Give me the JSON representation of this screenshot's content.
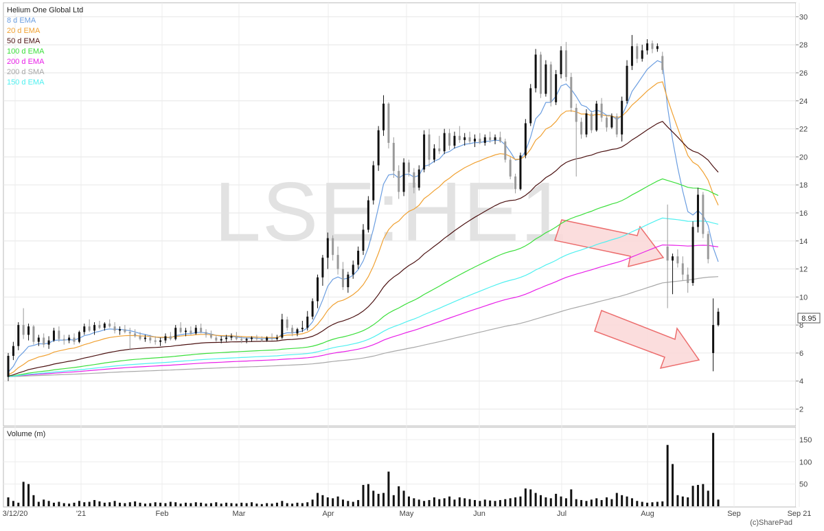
{
  "chart": {
    "title": "Helium One Global Ltd",
    "watermark": "LSE:HE1",
    "credit": "(c)SharePad",
    "last_price_label": "8.95",
    "volume_title": "Volume (m)",
    "legend": [
      {
        "label": "8 d EMA",
        "color": "#6a9de0"
      },
      {
        "label": "20 d EMA",
        "color": "#f0a030"
      },
      {
        "label": "50 d EMA",
        "color": "#4a1010"
      },
      {
        "label": "100 d EMA",
        "color": "#3adf3a"
      },
      {
        "label": "200 d EMA",
        "color": "#e81ee8"
      },
      {
        "label": "200 d SMA",
        "color": "#a8a8a8"
      },
      {
        "label": "150 d EMA",
        "color": "#4ef0f0"
      }
    ],
    "colors": {
      "up_candle": "#111111",
      "down_candle": "#9a9a9a",
      "arrow_fill": "#fbd9d9",
      "arrow_stroke": "#ec6d6d"
    }
  },
  "chart_data": {
    "type": "candlestick",
    "price_axis": {
      "min": 2,
      "max": 30,
      "step": 2,
      "ticks": [
        "2",
        "4",
        "6",
        "8",
        "10",
        "12",
        "14",
        "16",
        "18",
        "20",
        "22",
        "24",
        "26",
        "28",
        "30"
      ]
    },
    "volume_axis": {
      "ticks": [
        "50",
        "100",
        "150"
      ],
      "max": 170
    },
    "x_labels": [
      "3/12/20",
      "'21",
      "Feb",
      "Mar",
      "Apr",
      "May",
      "Jun",
      "Jul",
      "Aug",
      "Sep",
      "Sep 21"
    ],
    "candles": [
      {
        "o": 4.3,
        "h": 6.0,
        "l": 4.0,
        "c": 5.8
      },
      {
        "o": 5.8,
        "h": 6.8,
        "l": 5.5,
        "c": 6.5
      },
      {
        "o": 6.5,
        "h": 8.2,
        "l": 6.2,
        "c": 8.0
      },
      {
        "o": 8.0,
        "h": 9.2,
        "l": 7.0,
        "c": 7.3
      },
      {
        "o": 7.3,
        "h": 8.1,
        "l": 6.9,
        "c": 7.9
      },
      {
        "o": 7.9,
        "h": 8.0,
        "l": 6.6,
        "c": 6.8
      },
      {
        "o": 6.8,
        "h": 7.3,
        "l": 6.5,
        "c": 7.1
      },
      {
        "o": 7.1,
        "h": 7.4,
        "l": 6.4,
        "c": 6.6
      },
      {
        "o": 6.6,
        "h": 7.2,
        "l": 6.3,
        "c": 6.9
      },
      {
        "o": 6.9,
        "h": 7.8,
        "l": 6.8,
        "c": 7.6
      },
      {
        "o": 7.6,
        "h": 7.9,
        "l": 6.8,
        "c": 7.0
      },
      {
        "o": 7.0,
        "h": 7.3,
        "l": 6.6,
        "c": 6.9
      },
      {
        "o": 6.9,
        "h": 7.3,
        "l": 6.7,
        "c": 7.1
      },
      {
        "o": 7.1,
        "h": 7.4,
        "l": 6.6,
        "c": 6.8
      },
      {
        "o": 6.8,
        "h": 7.6,
        "l": 6.7,
        "c": 7.5
      },
      {
        "o": 7.5,
        "h": 8.1,
        "l": 7.3,
        "c": 7.9
      },
      {
        "o": 7.9,
        "h": 8.4,
        "l": 7.5,
        "c": 7.6
      },
      {
        "o": 7.6,
        "h": 8.2,
        "l": 7.3,
        "c": 8.0
      },
      {
        "o": 8.0,
        "h": 8.3,
        "l": 7.7,
        "c": 7.8
      },
      {
        "o": 7.8,
        "h": 8.2,
        "l": 7.6,
        "c": 8.1
      },
      {
        "o": 8.1,
        "h": 8.4,
        "l": 7.8,
        "c": 7.9
      },
      {
        "o": 7.9,
        "h": 8.2,
        "l": 7.4,
        "c": 7.6
      },
      {
        "o": 7.6,
        "h": 7.9,
        "l": 7.3,
        "c": 7.7
      },
      {
        "o": 7.7,
        "h": 8.0,
        "l": 7.4,
        "c": 7.5
      },
      {
        "o": 7.5,
        "h": 7.8,
        "l": 6.2,
        "c": 7.4
      },
      {
        "o": 7.4,
        "h": 7.7,
        "l": 7.1,
        "c": 7.2
      },
      {
        "o": 7.2,
        "h": 7.5,
        "l": 6.9,
        "c": 7.0
      },
      {
        "o": 7.0,
        "h": 7.3,
        "l": 6.8,
        "c": 7.1
      },
      {
        "o": 7.1,
        "h": 7.3,
        "l": 6.7,
        "c": 6.9
      },
      {
        "o": 6.9,
        "h": 7.2,
        "l": 6.6,
        "c": 6.8
      },
      {
        "o": 6.8,
        "h": 7.1,
        "l": 6.5,
        "c": 6.9
      },
      {
        "o": 6.9,
        "h": 7.4,
        "l": 6.7,
        "c": 7.2
      },
      {
        "o": 7.2,
        "h": 7.5,
        "l": 6.9,
        "c": 7.0
      },
      {
        "o": 7.0,
        "h": 8.0,
        "l": 6.9,
        "c": 7.8
      },
      {
        "o": 7.8,
        "h": 8.2,
        "l": 7.4,
        "c": 7.5
      },
      {
        "o": 7.5,
        "h": 7.8,
        "l": 7.2,
        "c": 7.6
      },
      {
        "o": 7.6,
        "h": 7.9,
        "l": 7.3,
        "c": 7.4
      },
      {
        "o": 7.4,
        "h": 8.0,
        "l": 7.3,
        "c": 7.8
      },
      {
        "o": 7.8,
        "h": 8.1,
        "l": 7.4,
        "c": 7.5
      },
      {
        "o": 7.5,
        "h": 7.7,
        "l": 7.1,
        "c": 7.3
      },
      {
        "o": 7.3,
        "h": 7.6,
        "l": 7.0,
        "c": 7.1
      },
      {
        "o": 7.1,
        "h": 7.3,
        "l": 6.8,
        "c": 6.9
      },
      {
        "o": 6.9,
        "h": 7.2,
        "l": 6.7,
        "c": 7.0
      },
      {
        "o": 7.0,
        "h": 7.3,
        "l": 6.8,
        "c": 7.1
      },
      {
        "o": 7.1,
        "h": 7.4,
        "l": 6.9,
        "c": 7.2
      },
      {
        "o": 7.2,
        "h": 7.5,
        "l": 6.9,
        "c": 7.0
      },
      {
        "o": 7.0,
        "h": 7.2,
        "l": 6.7,
        "c": 6.9
      },
      {
        "o": 6.9,
        "h": 7.1,
        "l": 6.7,
        "c": 7.0
      },
      {
        "o": 7.0,
        "h": 7.2,
        "l": 6.8,
        "c": 7.1
      },
      {
        "o": 7.1,
        "h": 7.3,
        "l": 6.9,
        "c": 7.0
      },
      {
        "o": 7.0,
        "h": 7.2,
        "l": 6.8,
        "c": 6.9
      },
      {
        "o": 6.9,
        "h": 7.2,
        "l": 6.8,
        "c": 7.1
      },
      {
        "o": 7.1,
        "h": 7.4,
        "l": 6.9,
        "c": 7.0
      },
      {
        "o": 7.0,
        "h": 7.3,
        "l": 6.9,
        "c": 7.1
      },
      {
        "o": 7.1,
        "h": 8.8,
        "l": 7.0,
        "c": 8.4
      },
      {
        "o": 8.4,
        "h": 8.6,
        "l": 7.6,
        "c": 7.8
      },
      {
        "o": 7.8,
        "h": 8.0,
        "l": 7.2,
        "c": 7.4
      },
      {
        "o": 7.4,
        "h": 7.8,
        "l": 7.2,
        "c": 7.7
      },
      {
        "o": 7.7,
        "h": 8.3,
        "l": 7.5,
        "c": 7.8
      },
      {
        "o": 7.8,
        "h": 9.0,
        "l": 7.6,
        "c": 8.6
      },
      {
        "o": 8.6,
        "h": 9.9,
        "l": 8.4,
        "c": 9.7
      },
      {
        "o": 9.7,
        "h": 11.6,
        "l": 9.2,
        "c": 11.4
      },
      {
        "o": 11.4,
        "h": 13.0,
        "l": 10.8,
        "c": 12.8
      },
      {
        "o": 12.8,
        "h": 14.6,
        "l": 12.0,
        "c": 14.2
      },
      {
        "o": 14.2,
        "h": 14.4,
        "l": 12.6,
        "c": 13.0
      },
      {
        "o": 13.0,
        "h": 13.6,
        "l": 11.6,
        "c": 12.0
      },
      {
        "o": 12.0,
        "h": 12.5,
        "l": 10.5,
        "c": 10.7
      },
      {
        "o": 10.7,
        "h": 11.8,
        "l": 10.3,
        "c": 11.6
      },
      {
        "o": 11.6,
        "h": 12.6,
        "l": 11.3,
        "c": 12.3
      },
      {
        "o": 12.3,
        "h": 13.6,
        "l": 12.0,
        "c": 13.3
      },
      {
        "o": 13.3,
        "h": 15.2,
        "l": 13.0,
        "c": 14.8
      },
      {
        "o": 14.8,
        "h": 17.2,
        "l": 14.6,
        "c": 16.9
      },
      {
        "o": 16.9,
        "h": 19.7,
        "l": 16.6,
        "c": 19.4
      },
      {
        "o": 19.4,
        "h": 22.2,
        "l": 19.0,
        "c": 21.9
      },
      {
        "o": 21.9,
        "h": 24.4,
        "l": 21.5,
        "c": 23.8
      },
      {
        "o": 23.8,
        "h": 23.9,
        "l": 20.6,
        "c": 21.0
      },
      {
        "o": 21.0,
        "h": 21.4,
        "l": 18.5,
        "c": 19.0
      },
      {
        "o": 19.0,
        "h": 19.4,
        "l": 17.0,
        "c": 17.5
      },
      {
        "o": 17.5,
        "h": 19.9,
        "l": 17.2,
        "c": 19.6
      },
      {
        "o": 19.6,
        "h": 19.8,
        "l": 18.6,
        "c": 18.9
      },
      {
        "o": 18.9,
        "h": 19.2,
        "l": 17.4,
        "c": 17.8
      },
      {
        "o": 17.8,
        "h": 19.4,
        "l": 17.6,
        "c": 19.1
      },
      {
        "o": 19.1,
        "h": 21.9,
        "l": 18.9,
        "c": 21.6
      },
      {
        "o": 21.6,
        "h": 22.0,
        "l": 19.3,
        "c": 19.8
      },
      {
        "o": 19.8,
        "h": 20.9,
        "l": 19.6,
        "c": 20.6
      },
      {
        "o": 20.6,
        "h": 21.5,
        "l": 20.2,
        "c": 20.4
      },
      {
        "o": 20.4,
        "h": 22.0,
        "l": 20.2,
        "c": 21.7
      },
      {
        "o": 21.7,
        "h": 22.0,
        "l": 20.5,
        "c": 20.8
      },
      {
        "o": 20.8,
        "h": 21.8,
        "l": 20.6,
        "c": 21.5
      },
      {
        "o": 21.5,
        "h": 22.2,
        "l": 21.0,
        "c": 21.2
      },
      {
        "o": 21.2,
        "h": 21.7,
        "l": 20.8,
        "c": 21.4
      },
      {
        "o": 21.4,
        "h": 21.8,
        "l": 20.9,
        "c": 21.1
      },
      {
        "o": 21.1,
        "h": 21.6,
        "l": 20.7,
        "c": 21.3
      },
      {
        "o": 21.3,
        "h": 21.7,
        "l": 20.9,
        "c": 21.0
      },
      {
        "o": 21.0,
        "h": 21.6,
        "l": 20.8,
        "c": 21.4
      },
      {
        "o": 21.4,
        "h": 21.8,
        "l": 21.0,
        "c": 21.2
      },
      {
        "o": 21.2,
        "h": 21.6,
        "l": 20.9,
        "c": 21.4
      },
      {
        "o": 21.4,
        "h": 21.8,
        "l": 21.0,
        "c": 21.1
      },
      {
        "o": 21.1,
        "h": 21.3,
        "l": 19.6,
        "c": 19.8
      },
      {
        "o": 19.8,
        "h": 20.0,
        "l": 18.4,
        "c": 18.6
      },
      {
        "o": 18.6,
        "h": 18.8,
        "l": 17.4,
        "c": 17.7
      },
      {
        "o": 17.7,
        "h": 20.3,
        "l": 17.6,
        "c": 20.1
      },
      {
        "o": 20.1,
        "h": 22.7,
        "l": 19.9,
        "c": 22.4
      },
      {
        "o": 22.4,
        "h": 25.2,
        "l": 22.2,
        "c": 24.9
      },
      {
        "o": 24.9,
        "h": 27.7,
        "l": 24.6,
        "c": 27.3
      },
      {
        "o": 27.3,
        "h": 27.5,
        "l": 24.2,
        "c": 24.5
      },
      {
        "o": 24.5,
        "h": 26.9,
        "l": 24.3,
        "c": 26.6
      },
      {
        "o": 26.6,
        "h": 26.8,
        "l": 23.6,
        "c": 23.9
      },
      {
        "o": 23.9,
        "h": 26.2,
        "l": 23.7,
        "c": 25.9
      },
      {
        "o": 25.9,
        "h": 27.9,
        "l": 25.6,
        "c": 27.6
      },
      {
        "o": 27.6,
        "h": 28.2,
        "l": 25.4,
        "c": 25.7
      },
      {
        "o": 25.7,
        "h": 26.0,
        "l": 23.2,
        "c": 23.5
      },
      {
        "o": 23.5,
        "h": 23.8,
        "l": 18.6,
        "c": 22.5
      },
      {
        "o": 22.5,
        "h": 22.8,
        "l": 21.3,
        "c": 21.6
      },
      {
        "o": 21.6,
        "h": 23.4,
        "l": 21.4,
        "c": 23.1
      },
      {
        "o": 23.1,
        "h": 23.3,
        "l": 21.7,
        "c": 21.9
      },
      {
        "o": 21.9,
        "h": 24.0,
        "l": 21.8,
        "c": 23.8
      },
      {
        "o": 23.8,
        "h": 24.2,
        "l": 22.5,
        "c": 22.8
      },
      {
        "o": 22.8,
        "h": 23.0,
        "l": 21.8,
        "c": 22.1
      },
      {
        "o": 22.1,
        "h": 23.1,
        "l": 22.0,
        "c": 22.9
      },
      {
        "o": 22.9,
        "h": 23.1,
        "l": 21.4,
        "c": 21.6
      },
      {
        "o": 21.6,
        "h": 24.3,
        "l": 21.1,
        "c": 24.0
      },
      {
        "o": 24.0,
        "h": 26.9,
        "l": 23.8,
        "c": 26.5
      },
      {
        "o": 26.5,
        "h": 28.7,
        "l": 26.2,
        "c": 27.9
      },
      {
        "o": 27.9,
        "h": 28.1,
        "l": 26.7,
        "c": 27.0
      },
      {
        "o": 27.0,
        "h": 28.0,
        "l": 26.8,
        "c": 27.6
      },
      {
        "o": 27.6,
        "h": 28.4,
        "l": 27.3,
        "c": 28.1
      },
      {
        "o": 28.1,
        "h": 28.3,
        "l": 27.4,
        "c": 27.7
      },
      {
        "o": 27.7,
        "h": 28.1,
        "l": 27.5,
        "c": 27.9
      },
      {
        "o": 27.2,
        "h": 27.5,
        "l": 25.9,
        "c": 26.2
      },
      {
        "o": 13.6,
        "h": 16.6,
        "l": 9.2,
        "c": 12.6
      },
      {
        "o": 12.6,
        "h": 13.1,
        "l": 10.2,
        "c": 12.9
      },
      {
        "o": 12.9,
        "h": 13.4,
        "l": 12.1,
        "c": 12.4
      },
      {
        "o": 12.4,
        "h": 12.9,
        "l": 11.2,
        "c": 11.6
      },
      {
        "o": 11.6,
        "h": 12.1,
        "l": 10.3,
        "c": 11.0
      },
      {
        "o": 11.0,
        "h": 15.4,
        "l": 10.8,
        "c": 15.0
      },
      {
        "o": 15.0,
        "h": 17.8,
        "l": 14.6,
        "c": 17.3
      },
      {
        "o": 17.3,
        "h": 17.5,
        "l": 14.2,
        "c": 14.5
      },
      {
        "o": 14.5,
        "h": 14.7,
        "l": 12.4,
        "c": 12.7
      },
      {
        "o": 6.0,
        "h": 9.9,
        "l": 4.7,
        "c": 8.0
      },
      {
        "o": 8.0,
        "h": 9.2,
        "l": 7.9,
        "c": 8.95
      }
    ],
    "volume": [
      20,
      12,
      8,
      55,
      50,
      25,
      10,
      15,
      12,
      8,
      10,
      7,
      6,
      8,
      12,
      9,
      10,
      14,
      11,
      8,
      9,
      12,
      8,
      7,
      9,
      11,
      8,
      6,
      7,
      9,
      8,
      7,
      10,
      9,
      6,
      8,
      7,
      9,
      8,
      6,
      7,
      9,
      6,
      8,
      7,
      6,
      8,
      7,
      9,
      6,
      5,
      7,
      6,
      8,
      12,
      7,
      6,
      8,
      7,
      9,
      15,
      30,
      25,
      20,
      18,
      22,
      15,
      12,
      10,
      14,
      48,
      50,
      35,
      28,
      30,
      78,
      25,
      45,
      35,
      22,
      18,
      15,
      12,
      14,
      20,
      16,
      18,
      22,
      15,
      20,
      18,
      16,
      14,
      12,
      15,
      13,
      12,
      14,
      16,
      18,
      20,
      22,
      40,
      38,
      30,
      25,
      20,
      18,
      28,
      22,
      18,
      38,
      16,
      14,
      12,
      15,
      18,
      14,
      20,
      16,
      30,
      25,
      22,
      18,
      12,
      10,
      8,
      9,
      10,
      11,
      138,
      95,
      25,
      22,
      20,
      46,
      48,
      50,
      35,
      165,
      15
    ],
    "moving_averages": [
      {
        "name": "8 d EMA",
        "period": 8,
        "kind": "ema",
        "start": 4.3
      },
      {
        "name": "20 d EMA",
        "period": 20,
        "kind": "ema",
        "start": 4.3
      },
      {
        "name": "50 d EMA",
        "period": 50,
        "kind": "ema",
        "start": 4.3
      },
      {
        "name": "100 d EMA",
        "period": 100,
        "kind": "ema",
        "start": 4.3
      },
      {
        "name": "200 d EMA",
        "period": 200,
        "kind": "ema",
        "start": 4.3
      },
      {
        "name": "200 d SMA",
        "period": 200,
        "kind": "sma",
        "start": 4.3
      },
      {
        "name": "150 d EMA",
        "period": 150,
        "kind": "ema",
        "start": 4.3
      }
    ]
  }
}
